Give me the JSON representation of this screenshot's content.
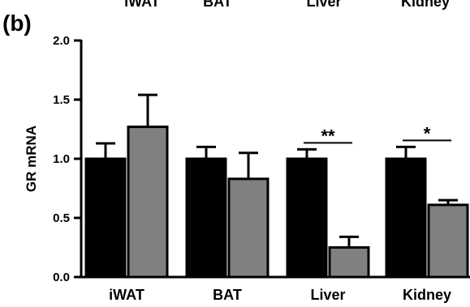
{
  "chart_data": {
    "type": "bar",
    "panel_label": "(b)",
    "top_labels": [
      "iWAT",
      "BAT",
      "Liver",
      "Kidney"
    ],
    "categories": [
      "iWAT",
      "BAT",
      "Liver",
      "Kidney"
    ],
    "series": [
      {
        "values": [
          1.0,
          1.0,
          1.0,
          1.0
        ],
        "errors": [
          0.13,
          0.1,
          0.08,
          0.1
        ],
        "color": "#000000"
      },
      {
        "values": [
          1.27,
          0.83,
          0.25,
          0.61
        ],
        "errors": [
          0.27,
          0.22,
          0.09,
          0.04
        ],
        "color": "#808080"
      }
    ],
    "significance": [
      {
        "category": "Liver",
        "label": "**"
      },
      {
        "category": "Kidney",
        "label": "*"
      }
    ],
    "ylabel": "GR mRNA",
    "ylim": [
      0,
      2.0
    ],
    "yticks": [
      "0.0",
      "0.5",
      "1.0",
      "1.5",
      "2.0"
    ],
    "grid": false,
    "legend": "none"
  }
}
